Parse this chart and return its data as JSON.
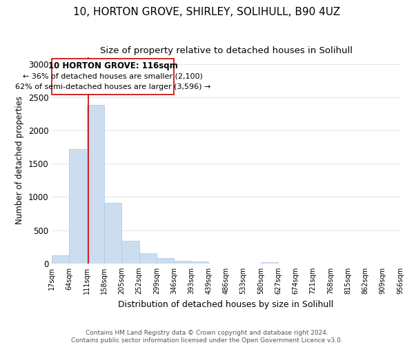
{
  "title": "10, HORTON GROVE, SHIRLEY, SOLIHULL, B90 4UZ",
  "subtitle": "Size of property relative to detached houses in Solihull",
  "xlabel": "Distribution of detached houses by size in Solihull",
  "ylabel": "Number of detached properties",
  "bar_edges": [
    17,
    64,
    111,
    158,
    205,
    252,
    299,
    346,
    393,
    439,
    486,
    533,
    580,
    627,
    674,
    721,
    768,
    815,
    862,
    909,
    956
  ],
  "bar_heights": [
    120,
    1720,
    2380,
    910,
    345,
    155,
    80,
    40,
    30,
    0,
    0,
    0,
    20,
    0,
    0,
    0,
    0,
    0,
    0,
    0
  ],
  "bar_color": "#ccddf0",
  "bar_edge_color": "#aac8e8",
  "vertical_line_x": 116,
  "vertical_line_color": "#cc0000",
  "box_text_line1": "10 HORTON GROVE: 116sqm",
  "box_text_line2": "← 36% of detached houses are smaller (2,100)",
  "box_text_line3": "62% of semi-detached houses are larger (3,596) →",
  "box_edge_color": "#cc0000",
  "box_fill_color": "white",
  "ylim": [
    0,
    3100
  ],
  "yticks": [
    0,
    500,
    1000,
    1500,
    2000,
    2500,
    3000
  ],
  "tick_labels": [
    "17sqm",
    "64sqm",
    "111sqm",
    "158sqm",
    "205sqm",
    "252sqm",
    "299sqm",
    "346sqm",
    "393sqm",
    "439sqm",
    "486sqm",
    "533sqm",
    "580sqm",
    "627sqm",
    "674sqm",
    "721sqm",
    "768sqm",
    "815sqm",
    "862sqm",
    "909sqm",
    "956sqm"
  ],
  "footer_line1": "Contains HM Land Registry data © Crown copyright and database right 2024.",
  "footer_line2": "Contains public sector information licensed under the Open Government Licence v3.0.",
  "bg_color": "white",
  "grid_color": "#dde8f2",
  "title_fontsize": 11,
  "subtitle_fontsize": 9.5
}
